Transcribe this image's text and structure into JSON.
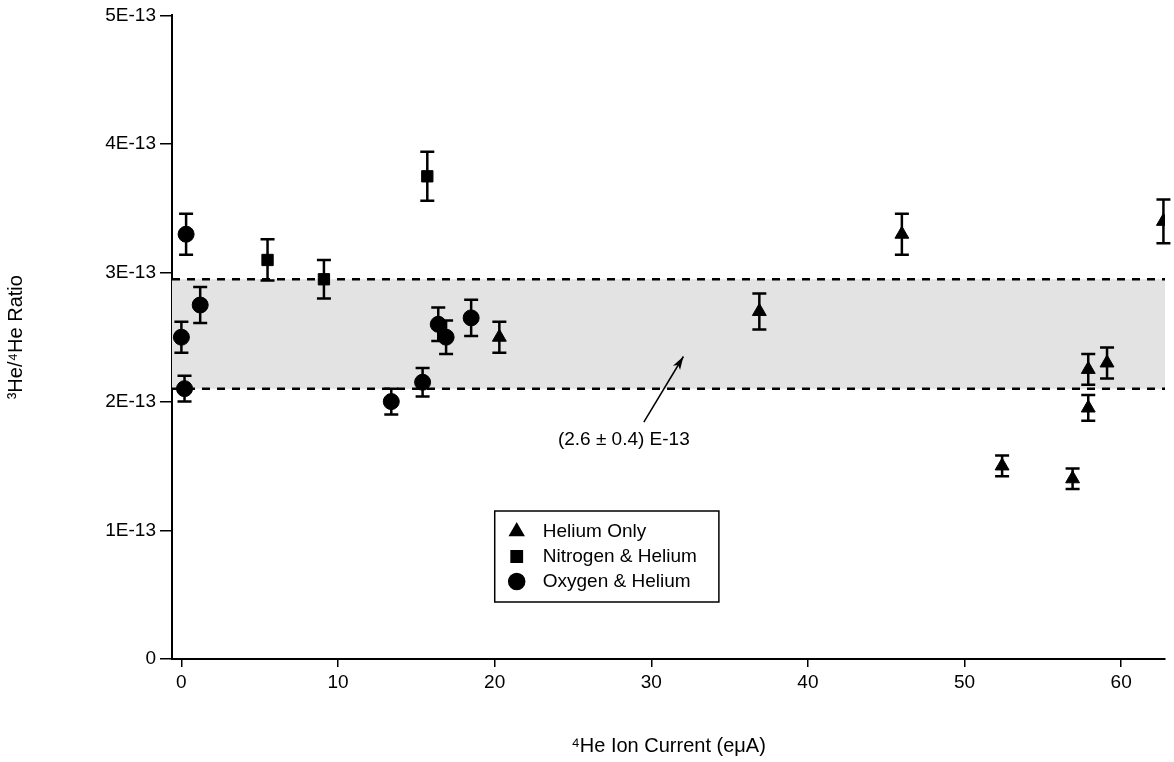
{
  "chart_data": {
    "type": "scatter",
    "xlabel": "⁴He Ion Current (eμA)",
    "ylabel": "³He/⁴He Ratio",
    "xlim": [
      -0.6,
      62.8
    ],
    "xticks": [
      0,
      10,
      20,
      30,
      40,
      50,
      60
    ],
    "ylim": [
      0,
      5e-13
    ],
    "yticks": [
      0,
      {
        "value": 1e-13,
        "label": "1E-13"
      },
      {
        "value": 2e-13,
        "label": "2E-13"
      },
      {
        "value": 3e-13,
        "label": "3E-13"
      },
      {
        "value": 4e-13,
        "label": "4E-13"
      },
      {
        "value": 5e-13,
        "label": "5E-13"
      }
    ],
    "grid": false,
    "legend": "bottom",
    "bands": [
      {
        "axis": "y",
        "from": 2.1e-13,
        "to": 2.95e-13,
        "color": "#e3e3e3"
      }
    ],
    "ref_lines": [
      {
        "axis": "y",
        "value": 2.1e-13,
        "line_style": "dashed",
        "color": "#000000"
      },
      {
        "axis": "y",
        "value": 2.95e-13,
        "line_style": "dashed",
        "color": "#000000"
      }
    ],
    "annotations": [
      "(2.6 ± 0.4) E-13"
    ],
    "series": [
      {
        "name": "Helium Only",
        "color": "#000000",
        "marker": "triangle",
        "x": [
          20.3,
          36.9,
          46.0,
          52.4,
          56.9,
          57.9,
          57.9,
          59.1,
          62.7
        ],
        "values": [
          2.5e-13,
          2.7e-13,
          3.3e-13,
          1.5e-13,
          1.4e-13,
          2.25e-13,
          1.95e-13,
          2.3e-13,
          3.4e-13
        ],
        "errors": [
          1.2e-14,
          1.4e-14,
          1.6e-14,
          8e-15,
          8e-15,
          1.2e-14,
          1e-14,
          1.2e-14,
          1.7e-14
        ]
      },
      {
        "name": "Nitrogen & Helium",
        "color": "#000000",
        "marker": "square",
        "x": [
          5.5,
          9.1,
          15.7
        ],
        "values": [
          3.1e-13,
          2.95e-13,
          3.75e-13
        ],
        "errors": [
          1.6e-14,
          1.5e-14,
          1.9e-14
        ]
      },
      {
        "name": "Oxygen & Helium",
        "color": "#000000",
        "marker": "circle",
        "x": [
          0.0,
          0.2,
          0.3,
          1.2,
          13.4,
          15.4,
          16.4,
          16.9,
          18.5
        ],
        "values": [
          2.5e-13,
          2.1e-13,
          3.3e-13,
          2.75e-13,
          2e-13,
          2.15e-13,
          2.6e-13,
          2.5e-13,
          2.65e-13
        ],
        "errors": [
          1.2e-14,
          1e-14,
          1.6e-14,
          1.4e-14,
          1e-14,
          1.1e-14,
          1.3e-14,
          1.3e-14,
          1.4e-14
        ]
      }
    ]
  }
}
